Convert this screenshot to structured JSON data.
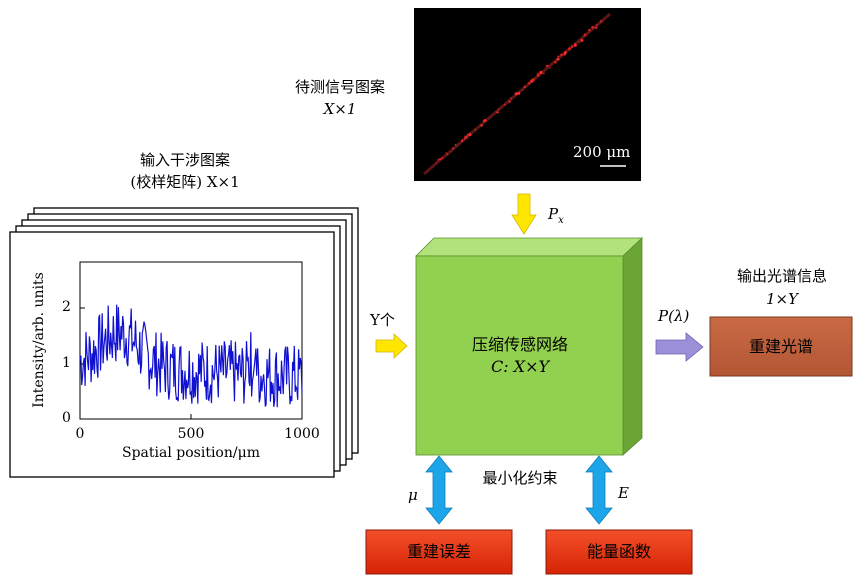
{
  "input_pattern": {
    "title_line1": "输入干涉图案",
    "title_line2": "(校样矩阵) X×1",
    "chart": {
      "ylabel": "Intensity/arb. units",
      "xlabel": "Spatial position/μm",
      "xticks": [
        "0",
        "500",
        "1000"
      ],
      "yticks": [
        "0",
        "1",
        "2"
      ]
    }
  },
  "measured_pattern": {
    "title_line1": "待测信号图案",
    "title_line2": "X×1",
    "scale_label": "200 μm"
  },
  "network": {
    "label_line1": "压缩传感网络",
    "label_line2": "C: X×Y"
  },
  "arrows": {
    "top_label": "P_x",
    "left_label": "Y个",
    "right_label": "P(λ)",
    "bottom_left_label": "μ",
    "bottom_right_label": "E"
  },
  "constraint_label": "最小化约束",
  "output": {
    "title_line1": "输出光谱信息",
    "title_line2": "1×Y",
    "box_label": "重建光谱"
  },
  "bottom_boxes": {
    "error_label": "重建误差",
    "energy_label": "能量函数"
  },
  "colors": {
    "cube_front": "#92d050",
    "cube_top": "#b2e27a",
    "cube_side": "#6aa535",
    "yellow_arrow": "#ffe600",
    "purple_arrow": "#9b8fd8",
    "blue_arrow": "#1ea4e8",
    "output_box": "#c0603a",
    "red_box": "#e8300c",
    "trace": "#1010d0"
  }
}
